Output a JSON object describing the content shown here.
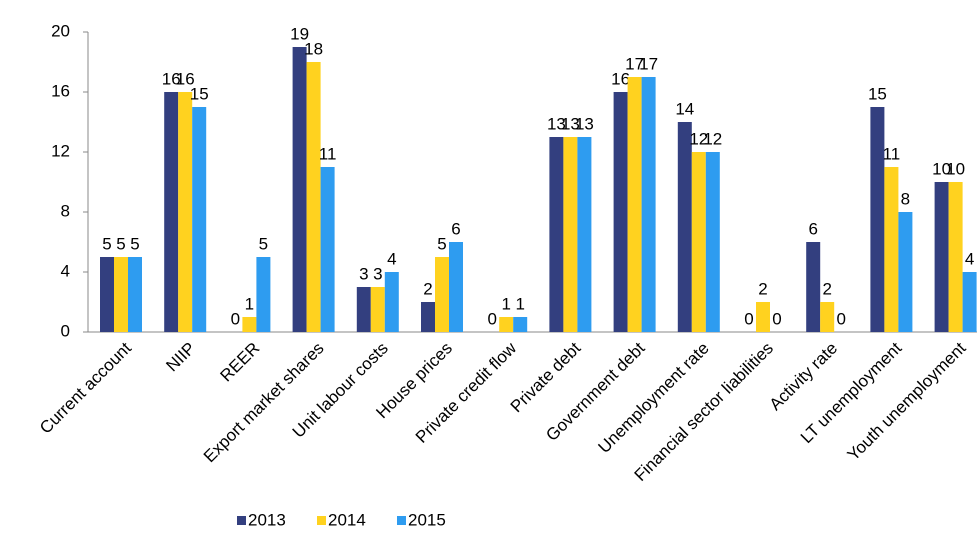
{
  "chart_data": {
    "type": "bar",
    "categories": [
      "Current account",
      "NIIP",
      "REER",
      "Export market shares",
      "Unit labour costs",
      "House prices",
      "Private credit flow",
      "Private debt",
      "Government debt",
      "Unemployment rate",
      "Financial sector liabilities",
      "Activity rate",
      "LT unemployment",
      "Youth unemployment"
    ],
    "series": [
      {
        "name": "2013",
        "color": "#333f7f",
        "values": [
          5,
          16,
          0,
          19,
          3,
          2,
          0,
          13,
          16,
          14,
          0,
          6,
          15,
          10
        ]
      },
      {
        "name": "2014",
        "color": "#ffd21f",
        "values": [
          5,
          16,
          1,
          18,
          3,
          5,
          1,
          13,
          17,
          12,
          2,
          2,
          11,
          10
        ]
      },
      {
        "name": "2015",
        "color": "#2e9cf0",
        "values": [
          5,
          15,
          5,
          11,
          4,
          6,
          1,
          13,
          17,
          12,
          0,
          0,
          8,
          4
        ]
      }
    ],
    "ylim": [
      0,
      20
    ],
    "yticks": [
      0,
      4,
      8,
      12,
      16,
      20
    ],
    "grid": false
  }
}
